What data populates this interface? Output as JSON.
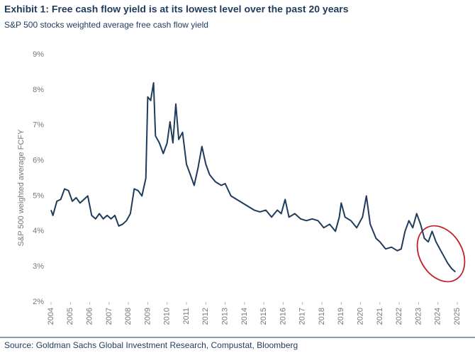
{
  "chart_data": {
    "type": "line",
    "title": "Exhibit 1: Free cash flow yield is at its lowest level over the past 20 years",
    "subtitle": "S&P 500 stocks weighted average free cash flow yield",
    "y_label": "S&P 500 weighted average FCFY",
    "source": "Source: Goldman Sachs Global Investment Research, Compustat, Bloomberg",
    "x": [
      2004.0,
      2004.1,
      2004.3,
      2004.5,
      2004.7,
      2004.9,
      2005.1,
      2005.3,
      2005.5,
      2005.7,
      2005.9,
      2006.1,
      2006.3,
      2006.5,
      2006.7,
      2006.9,
      2007.1,
      2007.3,
      2007.5,
      2007.7,
      2007.9,
      2008.1,
      2008.3,
      2008.5,
      2008.7,
      2008.9,
      2009.0,
      2009.15,
      2009.3,
      2009.4,
      2009.6,
      2009.8,
      2010.0,
      2010.15,
      2010.3,
      2010.45,
      2010.6,
      2010.8,
      2011.0,
      2011.2,
      2011.4,
      2011.6,
      2011.8,
      2012.0,
      2012.2,
      2012.5,
      2012.8,
      2013.0,
      2013.3,
      2013.6,
      2013.9,
      2014.2,
      2014.5,
      2014.8,
      2015.1,
      2015.4,
      2015.7,
      2015.9,
      2016.1,
      2016.3,
      2016.6,
      2016.9,
      2017.2,
      2017.5,
      2017.8,
      2018.1,
      2018.4,
      2018.7,
      2018.9,
      2019.0,
      2019.2,
      2019.5,
      2019.8,
      2020.1,
      2020.3,
      2020.5,
      2020.8,
      2021.0,
      2021.3,
      2021.6,
      2021.9,
      2022.1,
      2022.3,
      2022.5,
      2022.7,
      2022.9,
      2023.1,
      2023.3,
      2023.5,
      2023.7,
      2023.9,
      2024.1,
      2024.3,
      2024.5,
      2024.7,
      2024.9
    ],
    "series": [
      {
        "name": "FCFY",
        "color": "#1f3b5c",
        "values": [
          4.6,
          4.45,
          4.85,
          4.9,
          5.2,
          5.15,
          4.85,
          4.95,
          4.8,
          4.9,
          5.0,
          4.45,
          4.35,
          4.5,
          4.35,
          4.45,
          4.35,
          4.45,
          4.15,
          4.2,
          4.3,
          4.5,
          5.2,
          5.15,
          5.0,
          5.5,
          7.8,
          7.7,
          8.2,
          6.7,
          6.5,
          6.2,
          6.5,
          7.1,
          6.5,
          7.6,
          6.6,
          6.8,
          5.9,
          5.6,
          5.3,
          5.8,
          6.4,
          5.9,
          5.6,
          5.4,
          5.3,
          5.35,
          5.0,
          4.9,
          4.8,
          4.7,
          4.6,
          4.55,
          4.6,
          4.4,
          4.6,
          4.5,
          4.9,
          4.4,
          4.5,
          4.35,
          4.3,
          4.35,
          4.3,
          4.1,
          4.2,
          4.0,
          4.4,
          4.8,
          4.4,
          4.3,
          4.1,
          4.4,
          5.0,
          4.2,
          3.8,
          3.7,
          3.5,
          3.55,
          3.45,
          3.5,
          4.0,
          4.3,
          4.1,
          4.5,
          4.2,
          3.8,
          3.7,
          4.0,
          3.7,
          3.5,
          3.3,
          3.1,
          2.95,
          2.85
        ]
      }
    ],
    "xlim": [
      2004,
      2025
    ],
    "xticks": [
      2004,
      2005,
      2006,
      2007,
      2008,
      2009,
      2010,
      2011,
      2012,
      2013,
      2014,
      2015,
      2016,
      2017,
      2018,
      2019,
      2020,
      2021,
      2022,
      2023,
      2024,
      2025
    ],
    "ylim": [
      2,
      9
    ],
    "yticks": [
      {
        "value": 2,
        "label": "2%"
      },
      {
        "value": 3,
        "label": "3%"
      },
      {
        "value": 4,
        "label": "4%"
      },
      {
        "value": 5,
        "label": "5%"
      },
      {
        "value": 6,
        "label": "6%"
      },
      {
        "value": 7,
        "label": "7%"
      },
      {
        "value": 8,
        "label": "8%"
      },
      {
        "value": 9,
        "label": "9%"
      }
    ],
    "grid": false
  }
}
